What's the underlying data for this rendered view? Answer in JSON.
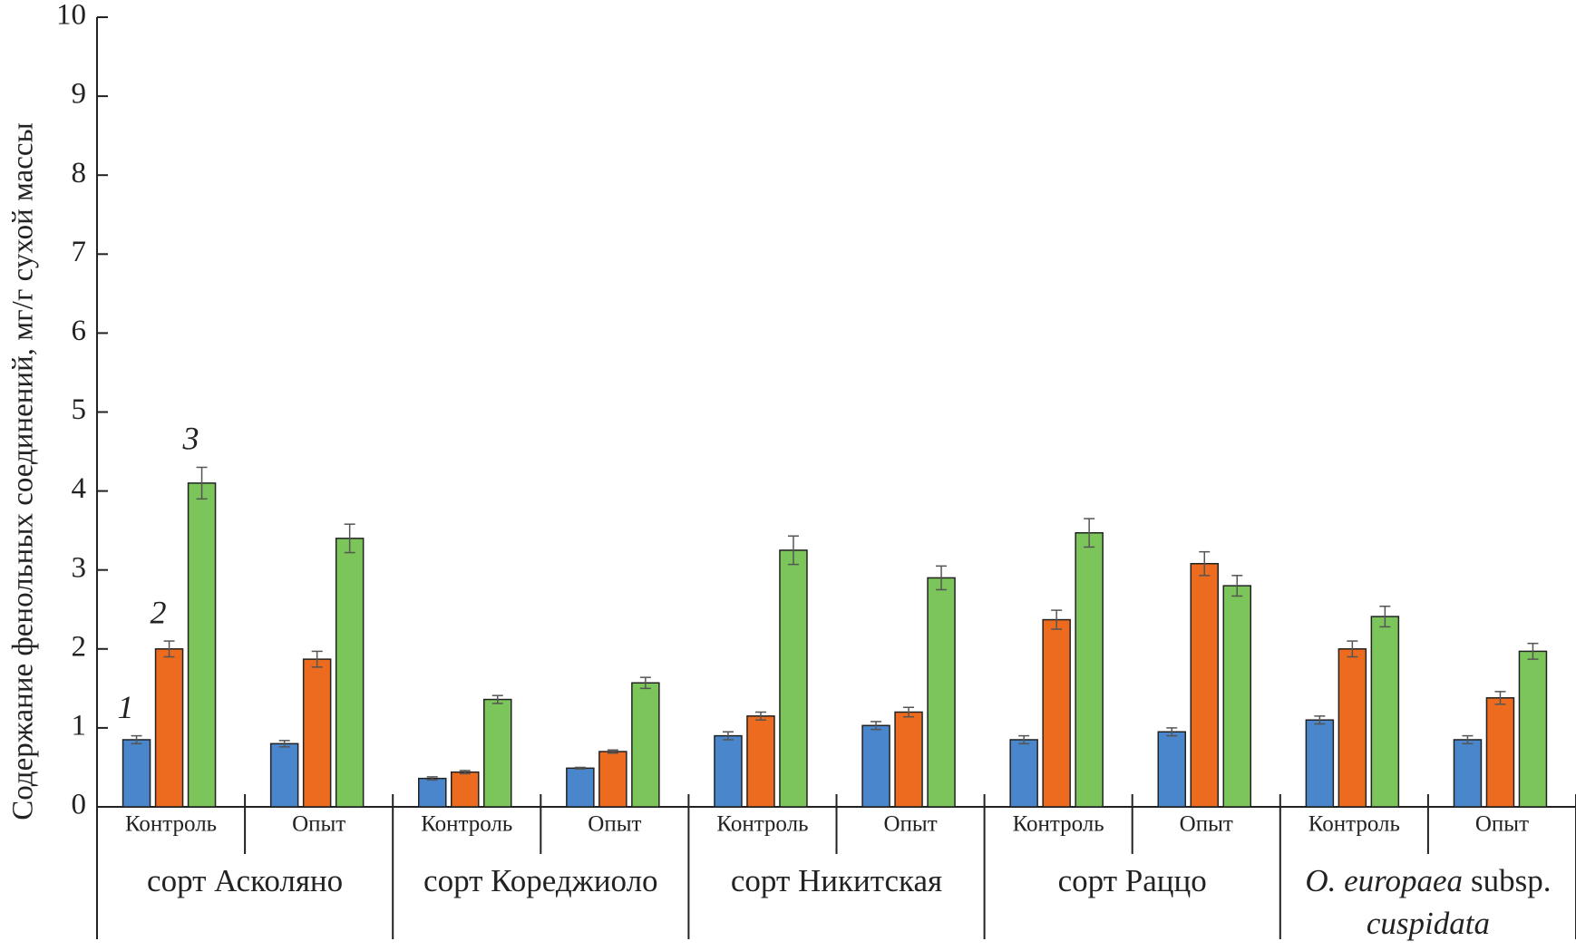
{
  "chart_data": {
    "type": "bar",
    "y_label": "Содержание фенольных соединений, мг/г сухой массы",
    "categories": [
      "Контроль",
      "Опыт",
      "Контроль",
      "Опыт",
      "Контроль",
      "Опыт",
      "Контроль",
      "Опыт",
      "Контроль",
      "Опыт"
    ],
    "groups": [
      {
        "parts": [
          {
            "text": "сорт Асколяно",
            "italic": false
          }
        ]
      },
      {
        "parts": [
          {
            "text": "сорт Кореджиоло",
            "italic": false
          }
        ]
      },
      {
        "parts": [
          {
            "text": "сорт Никитская",
            "italic": false
          }
        ]
      },
      {
        "parts": [
          {
            "text": "сорт Раццо",
            "italic": false
          }
        ]
      },
      {
        "parts": [
          {
            "text": "O. europaea",
            "italic": true
          },
          {
            "text": "subsp.",
            "italic": false
          },
          {
            "text": "cuspidata",
            "italic": true
          }
        ]
      }
    ],
    "series": [
      {
        "name": "1",
        "color": "#4a86cb",
        "values": [
          0.85,
          0.8,
          0.36,
          0.49,
          0.9,
          1.03,
          0.85,
          0.95,
          1.1,
          0.85
        ],
        "errors": [
          0.05,
          0.04,
          0.02,
          0.01,
          0.05,
          0.05,
          0.05,
          0.05,
          0.05,
          0.05
        ]
      },
      {
        "name": "2",
        "color": "#ec6b1e",
        "values": [
          2.0,
          1.87,
          0.44,
          0.7,
          1.15,
          1.2,
          2.37,
          3.08,
          2.0,
          1.38
        ],
        "errors": [
          0.1,
          0.1,
          0.02,
          0.02,
          0.05,
          0.06,
          0.12,
          0.15,
          0.1,
          0.08
        ]
      },
      {
        "name": "3",
        "color": "#7cc55a",
        "values": [
          4.1,
          3.4,
          1.36,
          1.57,
          3.25,
          2.9,
          3.47,
          2.8,
          2.41,
          1.97
        ],
        "errors": [
          0.2,
          0.18,
          0.05,
          0.07,
          0.18,
          0.15,
          0.18,
          0.13,
          0.13,
          0.1
        ]
      }
    ],
    "ylim": [
      0,
      10
    ],
    "yticks": [
      0,
      1,
      2,
      3,
      4,
      5,
      6,
      7,
      8,
      9,
      10
    ]
  }
}
